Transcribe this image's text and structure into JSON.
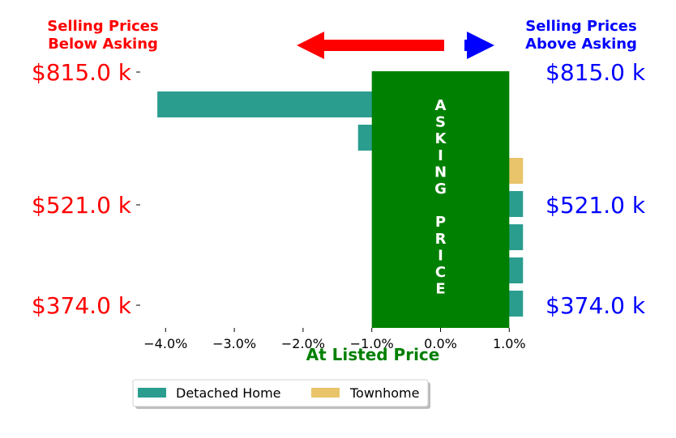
{
  "headers": {
    "left": [
      "Selling Prices",
      "Below Asking"
    ],
    "right": [
      "Selling Prices",
      "Above Asking"
    ],
    "left_color": "#ff0000",
    "right_color": "#0000ff"
  },
  "arrows": {
    "left_color": "#ff0000",
    "right_color": "#0000ff"
  },
  "asking": {
    "text": "ASKING PRICE",
    "letters": [
      "A",
      "S",
      "K",
      "I",
      "N",
      "G",
      "",
      "P",
      "R",
      "I",
      "C",
      "E"
    ],
    "color": "#008000"
  },
  "chart_data": {
    "type": "bar",
    "orientation": "horizontal",
    "xlabel": "At Listed Price",
    "xlabel_color": "#008000",
    "xlim": [
      -4.5,
      1.2
    ],
    "xticks": [
      -4.0,
      -3.0,
      -2.0,
      -1.0,
      0.0,
      1.0
    ],
    "xtick_labels": [
      "−4.0%",
      "−3.0%",
      "−2.0%",
      "−1.0%",
      "0.0%",
      "1.0%"
    ],
    "categories": [
      "$815.0 k",
      "",
      "",
      "$521.0 k",
      "",
      "",
      "$374.0 k"
    ],
    "yticks_left": [
      "$815.0 k",
      "$521.0 k",
      "$374.0 k"
    ],
    "yticks_right": [
      "$815.0 k",
      "$521.0 k",
      "$374.0 k"
    ],
    "ytick_rows": [
      0,
      3,
      6
    ],
    "bars": [
      {
        "row": 0,
        "series": "Detached Home",
        "value": -4.12
      },
      {
        "row": 1,
        "series": "Detached Home",
        "value": -1.2
      },
      {
        "row": 2,
        "series": "Townhome",
        "value": 1.2
      },
      {
        "row": 3,
        "series": "Detached Home",
        "value": 1.2
      },
      {
        "row": 4,
        "series": "Detached Home",
        "value": 1.2
      },
      {
        "row": 5,
        "series": "Detached Home",
        "value": 1.2
      },
      {
        "row": 6,
        "series": "Detached Home",
        "value": 1.2
      }
    ],
    "asking_band": [
      -1.0,
      1.0
    ],
    "series": [
      {
        "name": "Detached Home",
        "color": "#2a9d8f"
      },
      {
        "name": "Townhome",
        "color": "#e9c46a"
      }
    ],
    "legend_position": "bottom"
  }
}
